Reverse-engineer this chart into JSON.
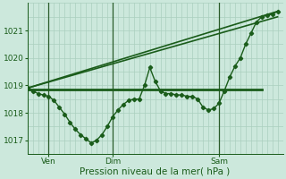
{
  "background_color": "#cce8dc",
  "grid_color": "#aacfbe",
  "line_color": "#1a5c1a",
  "marker_color": "#1a5c1a",
  "xlabel": "Pression niveau de la mer( hPa )",
  "ylim": [
    1016.5,
    1022.0
  ],
  "yticks": [
    1017,
    1018,
    1019,
    1020,
    1021
  ],
  "xlim": [
    0,
    48
  ],
  "xtick_positions": [
    4,
    16,
    36
  ],
  "xtick_labels": [
    "Ven",
    "Dim",
    "Sam"
  ],
  "vline_positions": [
    4,
    16,
    36
  ],
  "main_line_x": [
    0,
    1,
    2,
    3,
    4,
    5,
    6,
    7,
    8,
    9,
    10,
    11,
    12,
    13,
    14,
    15,
    16,
    17,
    18,
    19,
    20,
    21,
    22,
    23,
    24,
    25,
    26,
    27,
    28,
    29,
    30,
    31,
    32,
    33,
    34,
    35,
    36,
    37,
    38,
    39,
    40,
    41,
    42,
    43,
    44,
    45,
    46,
    47
  ],
  "main_line_y": [
    1018.9,
    1018.8,
    1018.7,
    1018.65,
    1018.6,
    1018.45,
    1018.2,
    1017.95,
    1017.65,
    1017.4,
    1017.2,
    1017.05,
    1016.9,
    1017.0,
    1017.2,
    1017.5,
    1017.85,
    1018.1,
    1018.3,
    1018.45,
    1018.5,
    1018.5,
    1019.0,
    1019.65,
    1019.15,
    1018.8,
    1018.7,
    1018.7,
    1018.65,
    1018.65,
    1018.6,
    1018.6,
    1018.5,
    1018.2,
    1018.1,
    1018.15,
    1018.35,
    1018.8,
    1019.3,
    1019.7,
    1020.0,
    1020.5,
    1020.9,
    1021.3,
    1021.5,
    1021.55,
    1021.6,
    1021.7
  ],
  "upper_line_x": [
    0,
    47
  ],
  "upper_line_y": [
    1018.9,
    1021.7
  ],
  "lower_line_x": [
    0,
    47
  ],
  "lower_line_y": [
    1018.9,
    1021.5
  ],
  "flat_line_x": [
    0,
    44
  ],
  "flat_line_y": [
    1018.85,
    1018.85
  ]
}
